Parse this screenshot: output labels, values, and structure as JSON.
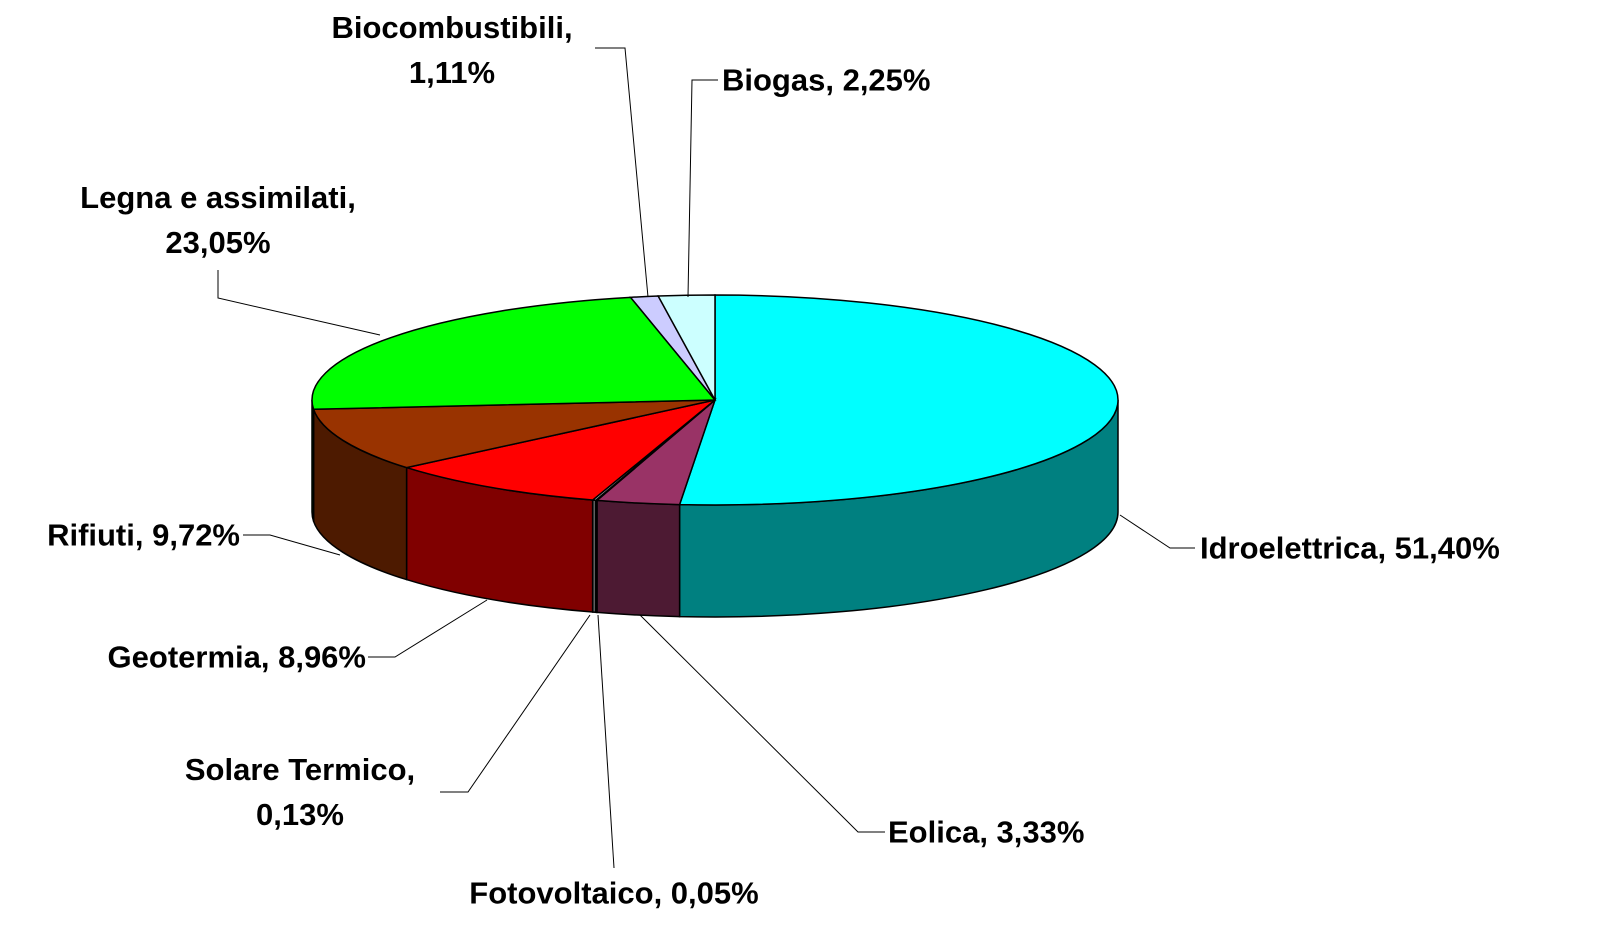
{
  "chart_data": {
    "type": "pie",
    "labels": [
      "Idroelettrica, 51,40%",
      "Eolica, 3,33%",
      "Fotovoltaico, 0,05%",
      "Solare Termico,\n0,13%",
      "Geotermia, 8,96%",
      "Rifiuti, 9,72%",
      "Legna e assimilati,\n23,05%",
      "Biocombustibili,\n1,11%",
      "Biogas, 2,25%"
    ],
    "values": [
      51.4,
      3.33,
      0.05,
      0.13,
      8.96,
      9.72,
      23.05,
      1.11,
      2.25
    ],
    "colors": [
      "#00ffff",
      "#993366",
      "#333333",
      "#c0c0c0",
      "#ff0000",
      "#993300",
      "#00ff00",
      "#ccccff",
      "#ccffff"
    ]
  }
}
